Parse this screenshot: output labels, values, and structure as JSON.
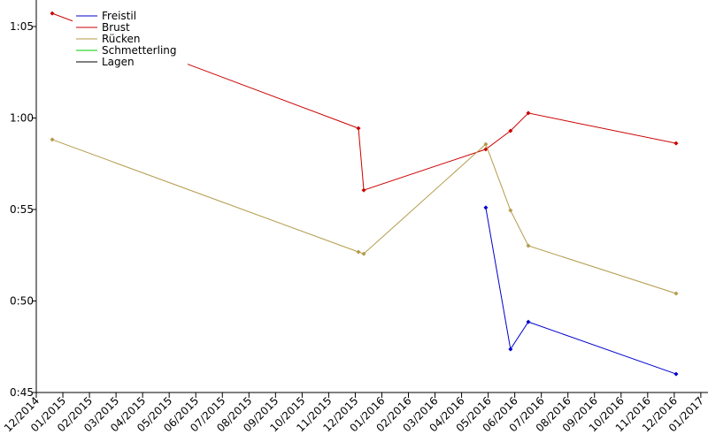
{
  "chart_data": {
    "type": "line",
    "xlim": [
      0,
      25.27
    ],
    "ylim": [
      45,
      66.45
    ],
    "xticks": [
      {
        "value": 0,
        "label": "12/2014"
      },
      {
        "value": 1,
        "label": "01/2015"
      },
      {
        "value": 2,
        "label": "02/2015"
      },
      {
        "value": 3,
        "label": "03/2015"
      },
      {
        "value": 4,
        "label": "04/2015"
      },
      {
        "value": 5,
        "label": "05/2015"
      },
      {
        "value": 6,
        "label": "06/2015"
      },
      {
        "value": 7,
        "label": "07/2015"
      },
      {
        "value": 8,
        "label": "08/2015"
      },
      {
        "value": 9,
        "label": "09/2015"
      },
      {
        "value": 10,
        "label": "10/2015"
      },
      {
        "value": 11,
        "label": "11/2015"
      },
      {
        "value": 12,
        "label": "12/2015"
      },
      {
        "value": 13,
        "label": "01/2016"
      },
      {
        "value": 14,
        "label": "02/2016"
      },
      {
        "value": 15,
        "label": "03/2016"
      },
      {
        "value": 16,
        "label": "04/2016"
      },
      {
        "value": 17,
        "label": "05/2016"
      },
      {
        "value": 18,
        "label": "06/2016"
      },
      {
        "value": 19,
        "label": "07/2016"
      },
      {
        "value": 20,
        "label": "08/2016"
      },
      {
        "value": 21,
        "label": "09/2016"
      },
      {
        "value": 22,
        "label": "10/2016"
      },
      {
        "value": 23,
        "label": "11/2016"
      },
      {
        "value": 24,
        "label": "12/2016"
      },
      {
        "value": 25,
        "label": "01/2017"
      }
    ],
    "yticks": [
      {
        "value": 45,
        "label": "0:45"
      },
      {
        "value": 50,
        "label": "0:50"
      },
      {
        "value": 55,
        "label": "0:55"
      },
      {
        "value": 60,
        "label": "1:00"
      },
      {
        "value": 65,
        "label": "1:05"
      }
    ],
    "legend": "upper left",
    "series": [
      {
        "name": "Freistil",
        "color": "#0000cc",
        "x": [
          16.91,
          17.84,
          18.51,
          24.07
        ],
        "values": [
          55.1,
          47.37,
          48.86,
          46.01
        ]
      },
      {
        "name": "Brust",
        "color": "#cc0000",
        "x": [
          0.6,
          12.12,
          12.32,
          16.91,
          17.84,
          18.51,
          24.07
        ],
        "values": [
          65.72,
          59.44,
          56.06,
          58.29,
          59.3,
          60.27,
          58.62
        ]
      },
      {
        "name": "Rücken",
        "color": "#b39b4a",
        "x": [
          0.6,
          12.12,
          12.32,
          16.91,
          17.84,
          18.51,
          24.07
        ],
        "values": [
          58.82,
          52.68,
          52.58,
          58.57,
          54.95,
          53.02,
          50.41
        ]
      },
      {
        "name": "Schmetterling",
        "color": "#00cc00",
        "x": [],
        "values": []
      },
      {
        "name": "Lagen",
        "color": "#000000",
        "x": [],
        "values": []
      }
    ]
  }
}
